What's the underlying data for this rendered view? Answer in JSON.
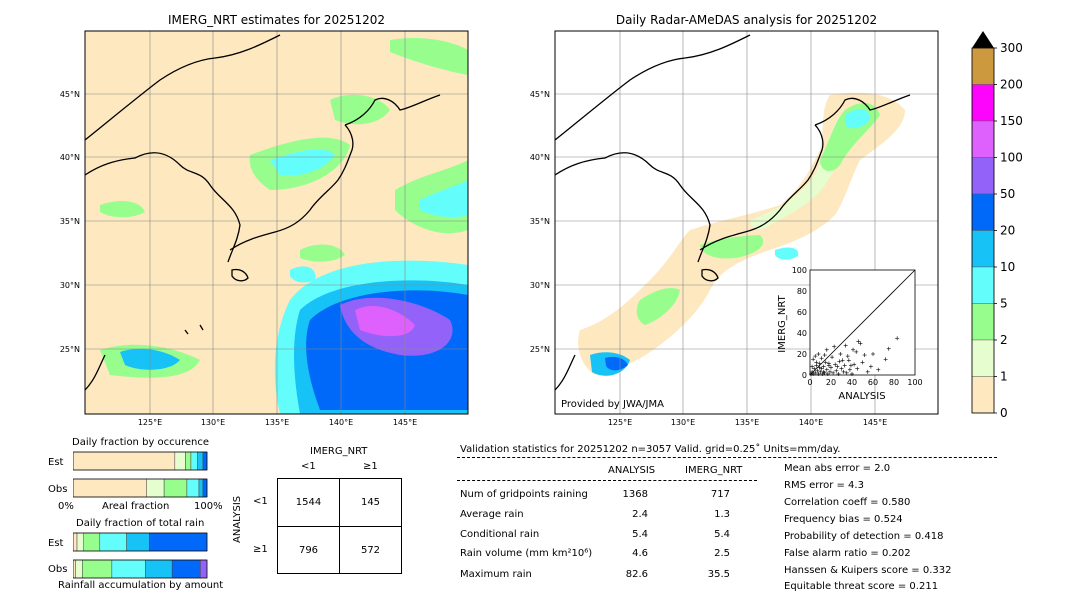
{
  "colors": {
    "c0": "#fde8c0",
    "c1": "#e6fecf",
    "c2": "#97fe8e",
    "c5": "#63fdfc",
    "c10": "#17c2f6",
    "c20": "#0069fa",
    "c50": "#9363f9",
    "c100": "#de60fd",
    "c150": "#fd04fd",
    "c200": "#cc993e",
    "c300": "#000000",
    "land": "#fde8c0",
    "sea": "#ffffff"
  },
  "left_map": {
    "title": "IMERG_NRT estimates for 20251202",
    "lat_labels": [
      "45°N",
      "40°N",
      "35°N",
      "30°N",
      "25°N"
    ],
    "lon_labels": [
      "125°E",
      "130°E",
      "135°E",
      "140°E",
      "145°E"
    ]
  },
  "right_map": {
    "title": "Daily Radar-AMeDAS analysis for 20251202",
    "lat_labels": [
      "45°N",
      "40°N",
      "35°N",
      "30°N",
      "25°N"
    ],
    "lon_labels": [
      "125°E",
      "130°E",
      "135°E",
      "140°E",
      "145°E"
    ],
    "credit": "Provided by JWA/JMA"
  },
  "colorbar": {
    "ticks": [
      "300",
      "200",
      "150",
      "100",
      "50",
      "20",
      "10",
      "5",
      "2",
      "1",
      "0"
    ]
  },
  "chart_data": [
    {
      "type": "scatter",
      "xlabel": "ANALYSIS",
      "ylabel": "IMERG_NRT",
      "xlim": [
        0,
        100
      ],
      "ylim": [
        0,
        100
      ],
      "x_ticks": [
        "0",
        "20",
        "40",
        "60",
        "80",
        "100"
      ],
      "y_ticks": [
        "0",
        "20",
        "40",
        "60",
        "80",
        "100"
      ],
      "points": [
        [
          1,
          1
        ],
        [
          2,
          3
        ],
        [
          3,
          1
        ],
        [
          4,
          6
        ],
        [
          5,
          2
        ],
        [
          6,
          9
        ],
        [
          7,
          4
        ],
        [
          8,
          1
        ],
        [
          9,
          11
        ],
        [
          10,
          3
        ],
        [
          11,
          6
        ],
        [
          12,
          1
        ],
        [
          13,
          8
        ],
        [
          14,
          2
        ],
        [
          15,
          12
        ],
        [
          16,
          5
        ],
        [
          17,
          1
        ],
        [
          18,
          9
        ],
        [
          19,
          3
        ],
        [
          20,
          7
        ],
        [
          22,
          2
        ],
        [
          24,
          10
        ],
        [
          25,
          4
        ],
        [
          27,
          1
        ],
        [
          28,
          13
        ],
        [
          30,
          6
        ],
        [
          32,
          3
        ],
        [
          33,
          9
        ],
        [
          35,
          2
        ],
        [
          37,
          14
        ],
        [
          38,
          5
        ],
        [
          40,
          1
        ],
        [
          42,
          10
        ],
        [
          44,
          22
        ],
        [
          45,
          6
        ],
        [
          48,
          30
        ],
        [
          50,
          12
        ],
        [
          55,
          3
        ],
        [
          58,
          8
        ],
        [
          60,
          20
        ],
        [
          65,
          5
        ],
        [
          72,
          15
        ],
        [
          75,
          25
        ],
        [
          83,
          35
        ],
        [
          2,
          8
        ],
        [
          3,
          15
        ],
        [
          5,
          18
        ],
        [
          6,
          12
        ],
        [
          8,
          20
        ],
        [
          9,
          7
        ],
        [
          11,
          16
        ],
        [
          13,
          3
        ],
        [
          14,
          19
        ],
        [
          16,
          24
        ],
        [
          18,
          11
        ],
        [
          21,
          17
        ],
        [
          23,
          27
        ],
        [
          26,
          8
        ],
        [
          29,
          20
        ],
        [
          31,
          14
        ],
        [
          34,
          28
        ],
        [
          36,
          18
        ],
        [
          39,
          9
        ],
        [
          41,
          24
        ],
        [
          46,
          32
        ],
        [
          52,
          19
        ]
      ]
    },
    {
      "type": "bar",
      "title": "Daily fraction by occurence",
      "categories": [
        "Est",
        "Obs"
      ],
      "series": [
        {
          "name": "0",
          "values": [
            0.76,
            0.55
          ]
        },
        {
          "name": "1",
          "values": [
            0.08,
            0.13
          ]
        },
        {
          "name": "2",
          "values": [
            0.04,
            0.17
          ]
        },
        {
          "name": "5",
          "values": [
            0.05,
            0.09
          ]
        },
        {
          "name": "10",
          "values": [
            0.04,
            0.03
          ]
        },
        {
          "name": "20",
          "values": [
            0.03,
            0.03
          ]
        }
      ],
      "x_tick_labels": [
        "0%",
        "Areal fraction",
        "100%"
      ]
    },
    {
      "type": "bar",
      "title": "Daily fraction of total rain",
      "categories": [
        "Est",
        "Obs"
      ],
      "series": [
        {
          "name": "0",
          "values": [
            0.03,
            0.02
          ]
        },
        {
          "name": "1",
          "values": [
            0.05,
            0.05
          ]
        },
        {
          "name": "2",
          "values": [
            0.12,
            0.22
          ]
        },
        {
          "name": "5",
          "values": [
            0.2,
            0.25
          ]
        },
        {
          "name": "10",
          "values": [
            0.17,
            0.2
          ]
        },
        {
          "name": "20",
          "values": [
            0.43,
            0.21
          ]
        },
        {
          "name": "50",
          "values": [
            0.0,
            0.05
          ]
        }
      ],
      "xlabel": "Rainfall accumulation by amount"
    },
    {
      "type": "table",
      "title": "IMERG_NRT",
      "col_labels": [
        "<1",
        "≥1"
      ],
      "row_title": "ANALYSIS",
      "row_labels": [
        "<1",
        "≥1"
      ],
      "cells": [
        [
          "1544",
          "145"
        ],
        [
          "796",
          "572"
        ]
      ]
    }
  ],
  "stats": {
    "header": "Validation statistics for 20251202  n=3057 Valid. grid=0.25˚ Units=mm/day.",
    "col_analysis": "ANALYSIS",
    "col_imerg": "IMERG_NRT",
    "rows": [
      {
        "label": "Num of gridpoints raining",
        "analysis": "1368",
        "imerg": "717"
      },
      {
        "label": "Average rain",
        "analysis": "2.4",
        "imerg": "1.3"
      },
      {
        "label": "Conditional rain",
        "analysis": "5.4",
        "imerg": "5.4"
      },
      {
        "label": "Rain volume (mm km²10⁶)",
        "analysis": "4.6",
        "imerg": "2.5"
      },
      {
        "label": "Maximum rain",
        "analysis": "82.6",
        "imerg": "35.5"
      }
    ],
    "scores": [
      "Mean abs error =    2.0",
      "RMS error =    4.3",
      "Correlation coeff =  0.580",
      "Frequency bias =  0.524",
      "Probability of detection =  0.418",
      "False alarm ratio =  0.202",
      "Hanssen & Kuipers score =  0.332",
      "Equitable threat score =  0.211"
    ]
  }
}
